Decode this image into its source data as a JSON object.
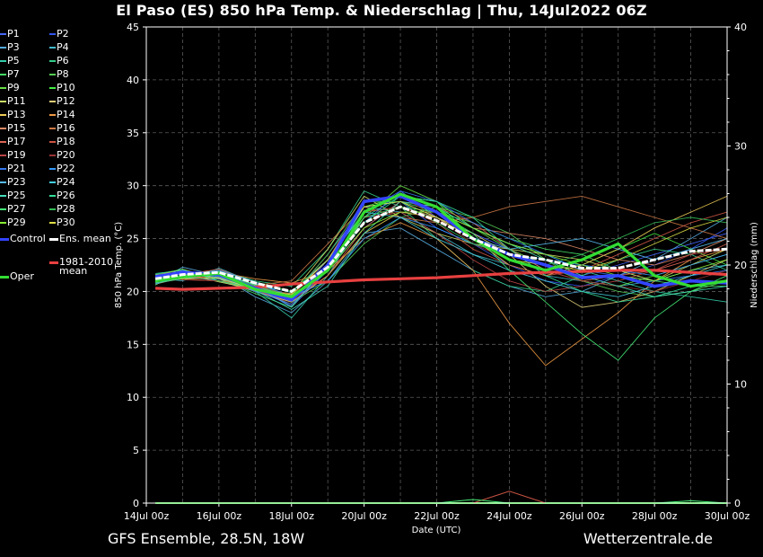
{
  "title": "El Paso  (ES)  850 hPa Temp. & Niederschlag | Thu, 14Jul2022 06Z",
  "footer": {
    "left": "GFS Ensemble, 28.5N, 18W",
    "right": "Wetterzentrale.de"
  },
  "colors": {
    "background": "#000000",
    "grid": "#555555",
    "ens_mean": "#ffffff",
    "oper": "#33dd33",
    "control": "#3344ff",
    "climate": "#e84040"
  },
  "chart_data": {
    "type": "line",
    "title": "El Paso  (ES)  850 hPa Temp. & Niederschlag | Thu, 14Jul2022 06Z",
    "xlabel": "Date (UTC)",
    "ylabel": "850 hPa Temp. (°C)",
    "y2label": "Niederschlag (mm)",
    "ylim": [
      0,
      45
    ],
    "y2lim": [
      0,
      40
    ],
    "yticks": [
      "0",
      "5",
      "10",
      "15",
      "20",
      "25",
      "30",
      "35",
      "40",
      "45"
    ],
    "y2ticks": [
      "0",
      "10",
      "20",
      "30",
      "40"
    ],
    "xlim": [
      "2022-07-14 00:00",
      "2022-07-30 00:00"
    ],
    "xticks": [
      "14Jul 00z",
      "16Jul 00z",
      "18Jul 00z",
      "20Jul 00z",
      "22Jul 00z",
      "24Jul 00z",
      "26Jul 00z",
      "28Jul 00z",
      "30Jul 00z"
    ],
    "grid": true,
    "legend_position": "left",
    "x_days": [
      0.25,
      1,
      2,
      3,
      4,
      5,
      6,
      7,
      8,
      9,
      10,
      11,
      12,
      13,
      14,
      15,
      16
    ],
    "legend": [
      {
        "label": "P1",
        "color": "#4466ff"
      },
      {
        "label": "P2",
        "color": "#3355ee"
      },
      {
        "label": "P3",
        "color": "#55aadd"
      },
      {
        "label": "P4",
        "color": "#44bbcc"
      },
      {
        "label": "P5",
        "color": "#33ccaa"
      },
      {
        "label": "P6",
        "color": "#33cc88"
      },
      {
        "label": "P7",
        "color": "#44dd66"
      },
      {
        "label": "P8",
        "color": "#55cc55"
      },
      {
        "label": "P9",
        "color": "#66dd44"
      },
      {
        "label": "P10",
        "color": "#44ee44"
      },
      {
        "label": "P11",
        "color": "#ccdd66"
      },
      {
        "label": "P12",
        "color": "#ddcc77"
      },
      {
        "label": "P13",
        "color": "#eecc55"
      },
      {
        "label": "P14",
        "color": "#ee9944"
      },
      {
        "label": "P15",
        "color": "#dd8866"
      },
      {
        "label": "P16",
        "color": "#cc7744"
      },
      {
        "label": "P17",
        "color": "#dd6655"
      },
      {
        "label": "P18",
        "color": "#cc5544"
      },
      {
        "label": "P19",
        "color": "#bb4444"
      },
      {
        "label": "P20",
        "color": "#993333"
      },
      {
        "label": "P21",
        "color": "#3377ee"
      },
      {
        "label": "P22",
        "color": "#3399ff"
      },
      {
        "label": "P23",
        "color": "#55bbee"
      },
      {
        "label": "P24",
        "color": "#44ccdd"
      },
      {
        "label": "P25",
        "color": "#44ddbb"
      },
      {
        "label": "P26",
        "color": "#33dd99"
      },
      {
        "label": "P27",
        "color": "#44ee77"
      },
      {
        "label": "P28",
        "color": "#33bb55"
      },
      {
        "label": "P29",
        "color": "#88ee33"
      },
      {
        "label": "P30",
        "color": "#dddd44"
      },
      {
        "label": "Control",
        "color": "#3344ff",
        "wide": true
      },
      {
        "label": "Ens. mean",
        "color": "#ffffff",
        "wide": true
      },
      {
        "label": "1981-2010 mean",
        "color": "#e84040",
        "wide": true
      },
      {
        "label": "Oper",
        "color": "#33dd33",
        "wide": true
      }
    ],
    "series": [
      {
        "name": "Ens. mean",
        "color": "#ffffff",
        "values": [
          21.2,
          21.6,
          21.8,
          20.8,
          20.0,
          22.3,
          26.5,
          28.0,
          26.7,
          25.0,
          23.5,
          23.0,
          22.2,
          22.2,
          23.0,
          23.8,
          24.0
        ]
      },
      {
        "name": "Control",
        "color": "#3344ff",
        "values": [
          21.4,
          21.8,
          21.6,
          20.3,
          19.2,
          22.5,
          28.5,
          29.0,
          27.5,
          25.0,
          23.5,
          22.5,
          21.3,
          21.5,
          20.5,
          21.0,
          20.8
        ]
      },
      {
        "name": "Oper",
        "color": "#33dd33",
        "values": [
          21.0,
          21.4,
          21.7,
          20.2,
          19.5,
          22.0,
          27.5,
          29.2,
          28.0,
          25.0,
          23.0,
          22.0,
          23.0,
          24.5,
          21.5,
          20.5,
          21.0
        ]
      },
      {
        "name": "1981-2010 mean",
        "color": "#e84040",
        "values": [
          20.3,
          20.2,
          20.3,
          20.4,
          20.7,
          20.9,
          21.1,
          21.2,
          21.3,
          21.5,
          21.7,
          21.8,
          21.9,
          22.0,
          22.0,
          21.8,
          21.6
        ]
      },
      {
        "name": "P1",
        "color": "#4466ff",
        "values": [
          21.5,
          21.9,
          21.3,
          20.1,
          19.0,
          23.0,
          27.5,
          29.5,
          27.0,
          25.5,
          24.0,
          22.0,
          21.5,
          22.5,
          23.5,
          24.5,
          25.5
        ]
      },
      {
        "name": "P2",
        "color": "#3355ee",
        "values": [
          21.0,
          21.5,
          21.0,
          20.5,
          18.5,
          22.0,
          26.0,
          28.5,
          26.0,
          24.5,
          22.5,
          21.0,
          20.5,
          21.5,
          22.5,
          24.0,
          26.0
        ]
      },
      {
        "name": "P3",
        "color": "#55aadd",
        "values": [
          20.8,
          22.3,
          21.5,
          19.5,
          18.0,
          21.0,
          25.5,
          26.0,
          24.0,
          22.0,
          20.5,
          19.5,
          20.0,
          21.5,
          23.0,
          25.0,
          27.0
        ]
      },
      {
        "name": "P4",
        "color": "#44bbcc",
        "values": [
          21.3,
          21.0,
          22.2,
          20.8,
          19.5,
          23.5,
          28.0,
          27.5,
          25.5,
          23.5,
          22.5,
          21.5,
          21.0,
          20.5,
          21.0,
          22.0,
          22.5
        ]
      },
      {
        "name": "P5",
        "color": "#33ccaa",
        "values": [
          21.7,
          22.0,
          21.0,
          20.0,
          17.5,
          21.5,
          27.0,
          29.0,
          28.5,
          26.0,
          24.5,
          23.5,
          22.0,
          21.0,
          20.0,
          19.5,
          19.0
        ]
      },
      {
        "name": "P6",
        "color": "#33cc88",
        "values": [
          20.9,
          21.6,
          22.0,
          21.0,
          20.5,
          24.0,
          29.5,
          28.0,
          25.0,
          22.0,
          20.5,
          20.0,
          21.5,
          23.0,
          24.0,
          23.5,
          22.0
        ]
      },
      {
        "name": "P7",
        "color": "#44dd66",
        "values": [
          21.1,
          21.8,
          21.2,
          19.8,
          18.5,
          22.5,
          28.0,
          28.5,
          27.5,
          26.5,
          25.0,
          24.0,
          23.5,
          22.0,
          21.0,
          20.5,
          20.5
        ]
      },
      {
        "name": "P8",
        "color": "#55cc55",
        "values": [
          21.6,
          21.2,
          21.7,
          20.6,
          19.0,
          21.0,
          24.5,
          27.0,
          28.0,
          27.0,
          25.5,
          23.0,
          21.0,
          20.0,
          19.5,
          20.0,
          21.0
        ]
      },
      {
        "name": "P9",
        "color": "#66dd44",
        "values": [
          20.6,
          22.0,
          21.4,
          20.3,
          19.2,
          22.0,
          27.0,
          30.0,
          28.5,
          26.0,
          24.0,
          22.5,
          21.0,
          20.5,
          21.5,
          22.5,
          23.5
        ]
      },
      {
        "name": "P10",
        "color": "#44ee44",
        "values": [
          21.4,
          21.4,
          21.9,
          20.9,
          20.0,
          23.0,
          28.0,
          29.0,
          28.5,
          25.0,
          23.0,
          22.0,
          22.5,
          24.0,
          25.5,
          24.0,
          22.5
        ]
      },
      {
        "name": "P11",
        "color": "#ccdd66",
        "values": [
          21.2,
          21.7,
          20.9,
          20.2,
          19.8,
          24.0,
          29.0,
          27.0,
          25.5,
          24.5,
          24.0,
          23.5,
          23.0,
          22.0,
          21.0,
          22.5,
          24.0
        ]
      },
      {
        "name": "P12",
        "color": "#ddcc77",
        "values": [
          20.7,
          21.3,
          21.6,
          20.7,
          19.4,
          22.5,
          26.5,
          28.0,
          27.0,
          25.5,
          23.5,
          20.5,
          18.5,
          19.0,
          20.0,
          21.5,
          23.0
        ]
      },
      {
        "name": "P13",
        "color": "#eecc55",
        "values": [
          21.5,
          22.1,
          21.2,
          20.0,
          19.0,
          21.5,
          25.5,
          27.5,
          27.0,
          25.0,
          22.5,
          21.5,
          22.5,
          24.0,
          26.0,
          27.5,
          29.0
        ]
      },
      {
        "name": "P14",
        "color": "#ee9944",
        "values": [
          21.0,
          21.5,
          21.8,
          21.2,
          20.8,
          22.0,
          25.0,
          26.5,
          25.0,
          22.0,
          17.0,
          13.0,
          15.5,
          18.0,
          21.0,
          23.0,
          24.0
        ]
      },
      {
        "name": "P15",
        "color": "#dd8866",
        "values": [
          21.3,
          21.9,
          21.5,
          20.4,
          19.6,
          23.0,
          28.5,
          29.0,
          27.5,
          26.0,
          25.5,
          25.0,
          24.0,
          23.0,
          22.5,
          23.5,
          25.0
        ]
      },
      {
        "name": "P16",
        "color": "#cc7744",
        "values": [
          20.8,
          21.2,
          21.0,
          20.6,
          21.0,
          24.5,
          28.0,
          27.0,
          26.5,
          27.0,
          28.0,
          28.5,
          29.0,
          28.0,
          27.0,
          26.0,
          25.0
        ]
      },
      {
        "name": "P17",
        "color": "#dd6655",
        "values": [
          21.6,
          21.6,
          22.1,
          20.8,
          19.2,
          21.5,
          26.0,
          28.5,
          28.0,
          26.5,
          24.0,
          22.0,
          21.0,
          21.5,
          22.0,
          23.0,
          24.5
        ]
      },
      {
        "name": "P18",
        "color": "#cc5544",
        "values": [
          21.1,
          21.4,
          21.3,
          20.2,
          18.8,
          22.0,
          27.5,
          28.0,
          26.5,
          24.0,
          22.5,
          21.5,
          22.0,
          23.5,
          25.0,
          26.5,
          27.5
        ]
      },
      {
        "name": "P19",
        "color": "#bb4444",
        "values": [
          20.9,
          21.8,
          21.7,
          20.5,
          19.7,
          22.5,
          27.0,
          27.5,
          25.5,
          23.0,
          21.0,
          20.0,
          20.5,
          21.0,
          22.0,
          23.5,
          24.0
        ]
      },
      {
        "name": "P20",
        "color": "#993333",
        "values": [
          21.4,
          21.1,
          21.0,
          20.3,
          19.4,
          23.5,
          28.5,
          29.0,
          27.0,
          24.5,
          23.0,
          22.0,
          21.0,
          20.5,
          20.0,
          21.0,
          22.0
        ]
      },
      {
        "name": "P21",
        "color": "#3377ee",
        "values": [
          21.2,
          22.0,
          21.4,
          20.0,
          18.8,
          22.0,
          26.5,
          29.5,
          28.5,
          26.5,
          25.0,
          23.5,
          22.0,
          21.5,
          21.0,
          21.5,
          22.0
        ]
      },
      {
        "name": "P22",
        "color": "#3399ff",
        "values": [
          20.7,
          21.5,
          22.0,
          20.9,
          19.5,
          21.0,
          25.0,
          27.0,
          26.0,
          24.5,
          23.5,
          23.0,
          22.5,
          22.0,
          21.5,
          22.5,
          23.5
        ]
      },
      {
        "name": "P23",
        "color": "#55bbee",
        "values": [
          21.5,
          21.3,
          21.2,
          20.4,
          18.6,
          22.5,
          28.0,
          28.5,
          27.0,
          25.0,
          24.0,
          24.5,
          25.0,
          24.0,
          23.0,
          24.0,
          25.0
        ]
      },
      {
        "name": "P24",
        "color": "#44ccdd",
        "values": [
          21.0,
          21.9,
          21.6,
          20.7,
          19.9,
          23.0,
          27.5,
          27.0,
          25.0,
          23.5,
          22.0,
          21.0,
          20.0,
          19.5,
          20.5,
          21.5,
          22.5
        ]
      },
      {
        "name": "P25",
        "color": "#44ddbb",
        "values": [
          21.3,
          21.7,
          21.3,
          20.1,
          18.3,
          20.5,
          25.5,
          28.5,
          28.0,
          26.0,
          24.5,
          23.0,
          21.5,
          20.5,
          19.5,
          20.0,
          20.5
        ]
      },
      {
        "name": "P26",
        "color": "#33dd99",
        "values": [
          20.8,
          21.2,
          21.9,
          20.6,
          19.3,
          22.0,
          26.5,
          29.0,
          28.5,
          27.0,
          24.0,
          21.5,
          20.0,
          19.0,
          19.5,
          20.5,
          21.0
        ]
      },
      {
        "name": "P27",
        "color": "#44ee77",
        "values": [
          21.6,
          22.1,
          21.0,
          20.3,
          19.1,
          22.5,
          27.0,
          28.0,
          27.5,
          25.5,
          22.0,
          19.0,
          16.0,
          13.5,
          17.5,
          20.0,
          21.5
        ]
      },
      {
        "name": "P28",
        "color": "#33bb55",
        "values": [
          21.1,
          21.5,
          21.7,
          20.5,
          19.6,
          23.5,
          28.5,
          28.5,
          26.5,
          24.5,
          23.5,
          22.5,
          23.5,
          25.0,
          26.5,
          27.0,
          26.5
        ]
      },
      {
        "name": "P29",
        "color": "#88ee33",
        "values": [
          20.9,
          21.8,
          21.5,
          20.3,
          19.4,
          22.0,
          26.0,
          27.5,
          27.5,
          26.0,
          24.5,
          23.5,
          22.5,
          21.5,
          21.0,
          22.0,
          23.0
        ]
      },
      {
        "name": "P30",
        "color": "#dddd44",
        "values": [
          21.4,
          21.2,
          21.3,
          20.2,
          19.7,
          23.0,
          28.0,
          28.5,
          27.0,
          25.0,
          23.0,
          22.5,
          22.0,
          23.0,
          24.5,
          26.0,
          27.0
        ]
      }
    ],
    "precip_series": [
      {
        "name": "Ens. mean",
        "color": "#ffffff",
        "values": [
          0,
          0,
          0,
          0,
          0,
          0,
          0,
          0,
          0,
          0,
          0,
          0,
          0,
          0,
          0,
          0,
          0
        ]
      },
      {
        "name": "Oper",
        "color": "#33dd33",
        "values": [
          0,
          0,
          0,
          0,
          0,
          0,
          0,
          0,
          0,
          0,
          0,
          0,
          0,
          0,
          0,
          0,
          0
        ]
      },
      {
        "name": "P18",
        "color": "#cc5544",
        "values": [
          0,
          0,
          0,
          0,
          0,
          0,
          0,
          0,
          0,
          0,
          1.0,
          0,
          0,
          0,
          0,
          0,
          0
        ]
      },
      {
        "name": "P27",
        "color": "#44ee77",
        "values": [
          0,
          0,
          0,
          0,
          0,
          0,
          0,
          0,
          0,
          0.3,
          0,
          0,
          0,
          0,
          0,
          0.2,
          0
        ]
      }
    ]
  }
}
